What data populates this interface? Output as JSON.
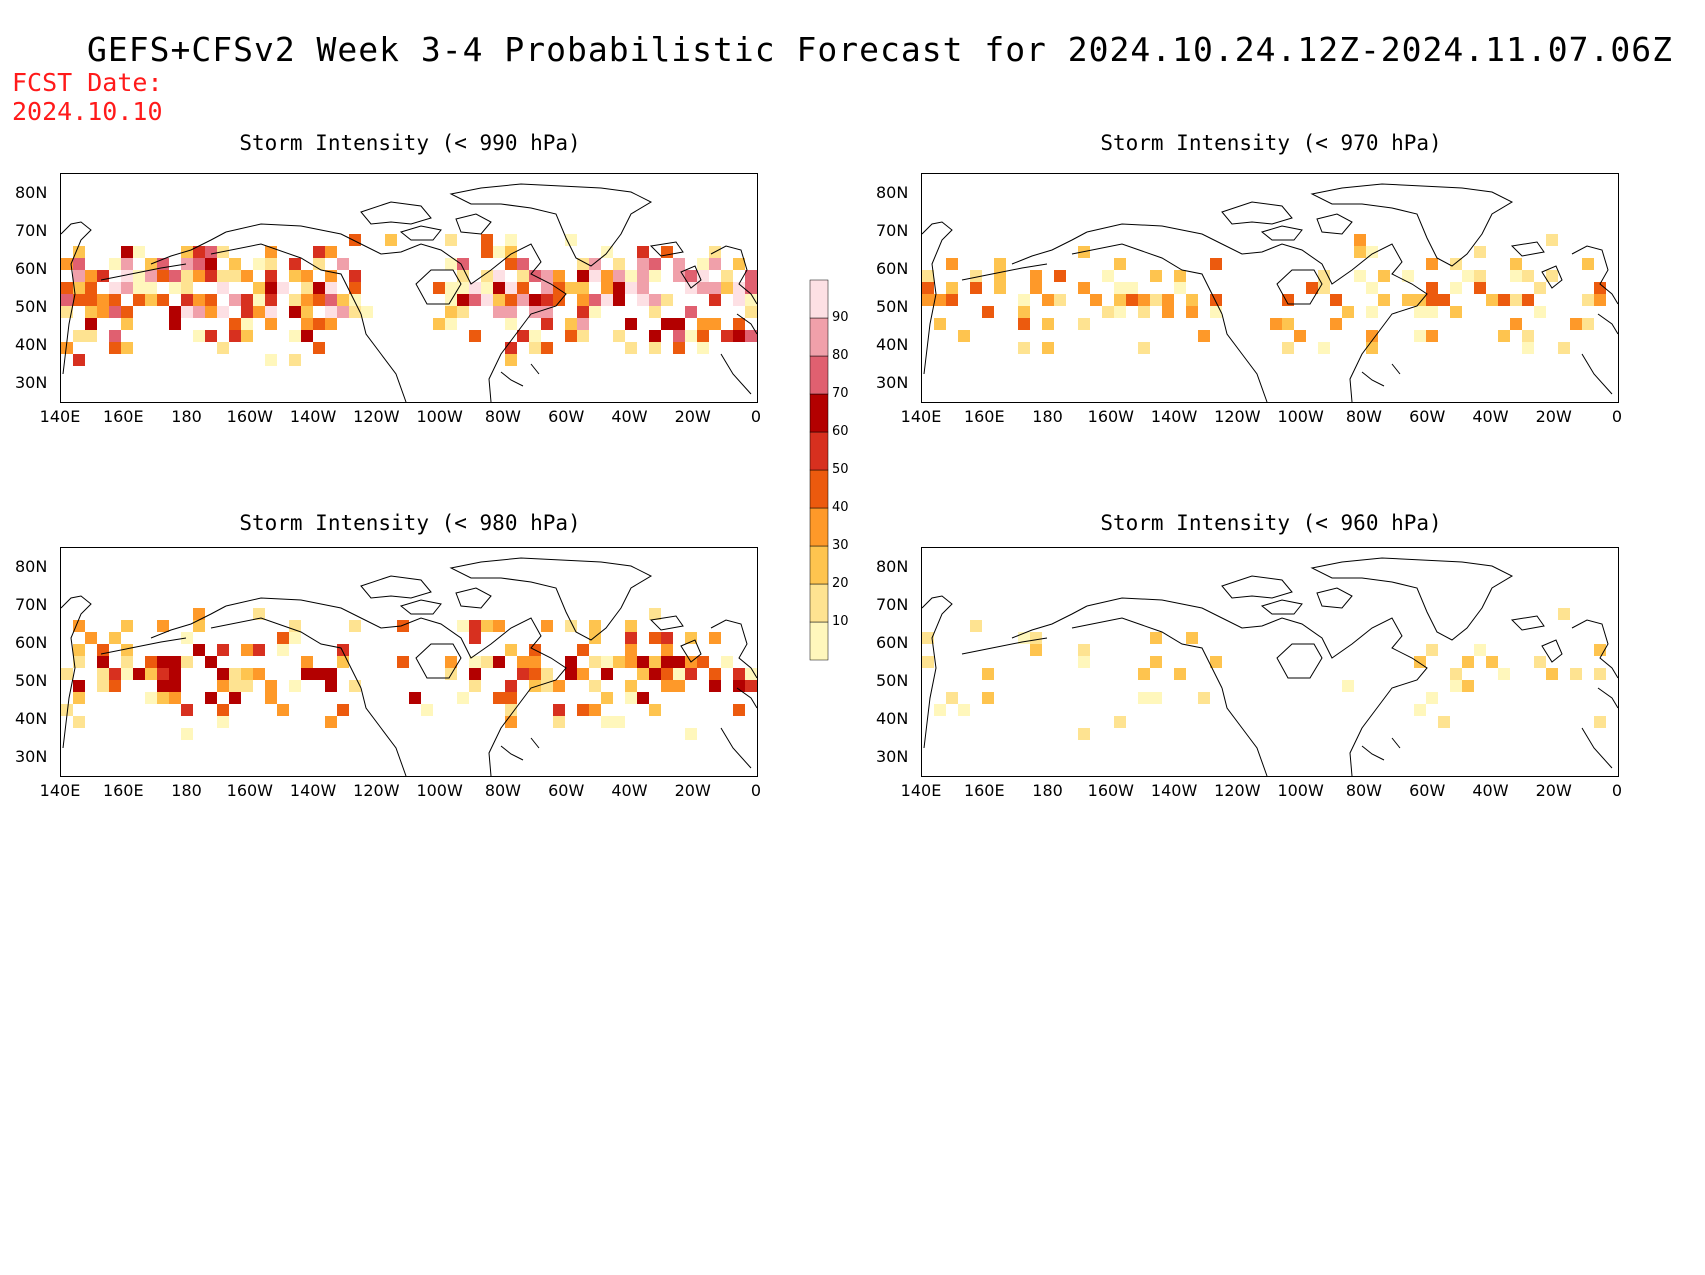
{
  "title": "GEFS+CFSv2 Week 3-4 Probabilistic Forecast for 2024.10.24.12Z-2024.11.07.06Z",
  "fcst_date_label": "FCST Date:",
  "fcst_date_value": "2024.10.10",
  "panels": [
    {
      "title": "Storm Intensity (< 990 hPa)",
      "intensity": "high"
    },
    {
      "title": "Storm Intensity (< 970 hPa)",
      "intensity": "mid"
    },
    {
      "title": "Storm Intensity (< 980 hPa)",
      "intensity": "midhigh"
    },
    {
      "title": "Storm Intensity (< 960 hPa)",
      "intensity": "low"
    }
  ],
  "lat_labels": [
    "80N",
    "70N",
    "60N",
    "50N",
    "40N",
    "30N"
  ],
  "lon_labels": [
    "140E",
    "160E",
    "180",
    "160W",
    "140W",
    "120W",
    "100W",
    "80W",
    "60W",
    "40W",
    "20W",
    "0"
  ],
  "colorbar": {
    "levels": [
      "10",
      "20",
      "30",
      "40",
      "50",
      "60",
      "70",
      "80",
      "90"
    ],
    "colors": [
      "#fff7bc",
      "#fee391",
      "#fec44f",
      "#fe9929",
      "#ec5a0e",
      "#d7301f",
      "#b30000",
      "#e06070",
      "#f0a0aa",
      "#fde0e4"
    ]
  }
}
